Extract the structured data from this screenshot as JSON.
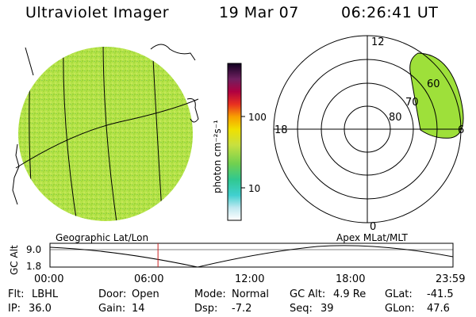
{
  "header": {
    "title": "Ultraviolet Imager",
    "date": "19 Mar 07",
    "time": "06:26:41 UT"
  },
  "colorbar": {
    "unit_label": "photon cm⁻²s⁻¹",
    "ticks": [
      "100",
      "10"
    ]
  },
  "polar_plot": {
    "mlt_labels": {
      "top": "12",
      "left": "18",
      "right": "6",
      "bottom": "0"
    },
    "lat_labels": [
      "60",
      "70",
      "80"
    ]
  },
  "timeline": {
    "left_label": "Geographic Lat/Lon",
    "right_label": "Apex  MLat/MLT",
    "axis_label": "GC Alt",
    "y_ticks": [
      "9.0",
      "1.8"
    ],
    "x_ticks": [
      "00:00",
      "06:00",
      "12:00",
      "18:00",
      "23:59"
    ],
    "current_time_fraction": 0.268
  },
  "info": {
    "flt_label": "Flt:",
    "flt_value": "LBHL",
    "ip_label": "IP:",
    "ip_value": "36.0",
    "door_label": "Door:",
    "door_value": "Open",
    "gain_label": "Gain:",
    "gain_value": "14",
    "mode_label": "Mode:",
    "mode_value": "Normal",
    "dsp_label": "Dsp:",
    "dsp_value": "-7.2",
    "gcalt_label": "GC Alt:",
    "gcalt_value": "4.9 Re",
    "seq_label": "Seq:",
    "seq_value": "39",
    "glat_label": "GLat:",
    "glat_value": "-41.5",
    "glon_label": "GLon:",
    "glon_value": "47.6"
  },
  "colors": {
    "aurora_fill": "#9ee03a",
    "marker": "#cc2020"
  }
}
